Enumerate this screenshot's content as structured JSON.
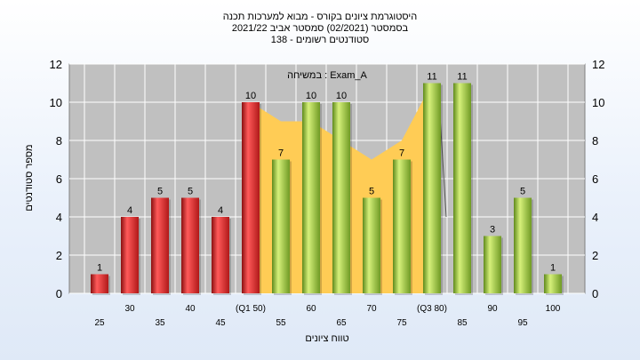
{
  "chart_data": {
    "type": "bar",
    "title_lines": [
      "היסטוגרמת ציונים בקורס - מבוא למערכות תכנה",
      "בסמסטר  (02/2021)  סמסטר אביב 2021/22",
      "סטודנטים רשומים - 138"
    ],
    "legend": "במשיחה : Exam_A",
    "xlabel": "טווח ציונים",
    "ylabel": "מספר סטודנטים",
    "ylim": [
      0,
      12
    ],
    "yticks": [
      0,
      2,
      4,
      6,
      8,
      10,
      12
    ],
    "categories": [
      "25",
      "30",
      "35",
      "40",
      "45",
      "(Q1 50)",
      "55",
      "60",
      "65",
      "70",
      "75",
      "(Q3 80)",
      "85",
      "90",
      "95",
      "100"
    ],
    "values": [
      1,
      4,
      5,
      5,
      4,
      10,
      7,
      10,
      10,
      5,
      7,
      11,
      11,
      3,
      5,
      1
    ],
    "value_labels": [
      "1",
      "4",
      "5",
      "5",
      "4",
      "10",
      "7",
      "10",
      "10",
      "5",
      "7",
      "11",
      "11",
      "3",
      "5",
      "1"
    ],
    "bar_groups": [
      "red",
      "red",
      "red",
      "red",
      "red",
      "red",
      "green",
      "green",
      "green",
      "green",
      "green",
      "green",
      "green",
      "green",
      "green",
      "green"
    ],
    "area_values": [
      10,
      9,
      9,
      8,
      7,
      8,
      11
    ],
    "colors": {
      "plot_bg": "#c0c0c0",
      "red": "#e02020",
      "green": "#99c438",
      "area": "#ffcc55",
      "grid": "#ffffff"
    },
    "grid": true
  }
}
